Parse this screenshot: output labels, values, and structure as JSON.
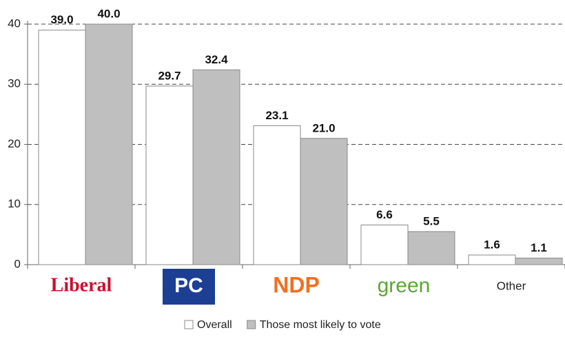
{
  "chart_data": {
    "type": "bar",
    "categories": [
      "Liberal",
      "PC",
      "NDP",
      "green",
      "Other"
    ],
    "series": [
      {
        "name": "Overall",
        "color": "#ffffff",
        "values": [
          39.0,
          29.7,
          23.1,
          6.6,
          1.6
        ],
        "value_labels": [
          "39.0",
          "29.7",
          "23.1",
          "6.6",
          "1.6"
        ]
      },
      {
        "name": "Those most likely to vote",
        "color": "#bfbfbf",
        "values": [
          40.0,
          32.4,
          21.0,
          5.5,
          1.1
        ],
        "value_labels": [
          "40.0",
          "32.4",
          "21.0",
          "5.5",
          "1.1"
        ]
      }
    ],
    "ylim": [
      0,
      40
    ],
    "yticks": [
      0,
      10,
      20,
      30,
      40
    ],
    "grid": true,
    "legend": "bottom"
  }
}
